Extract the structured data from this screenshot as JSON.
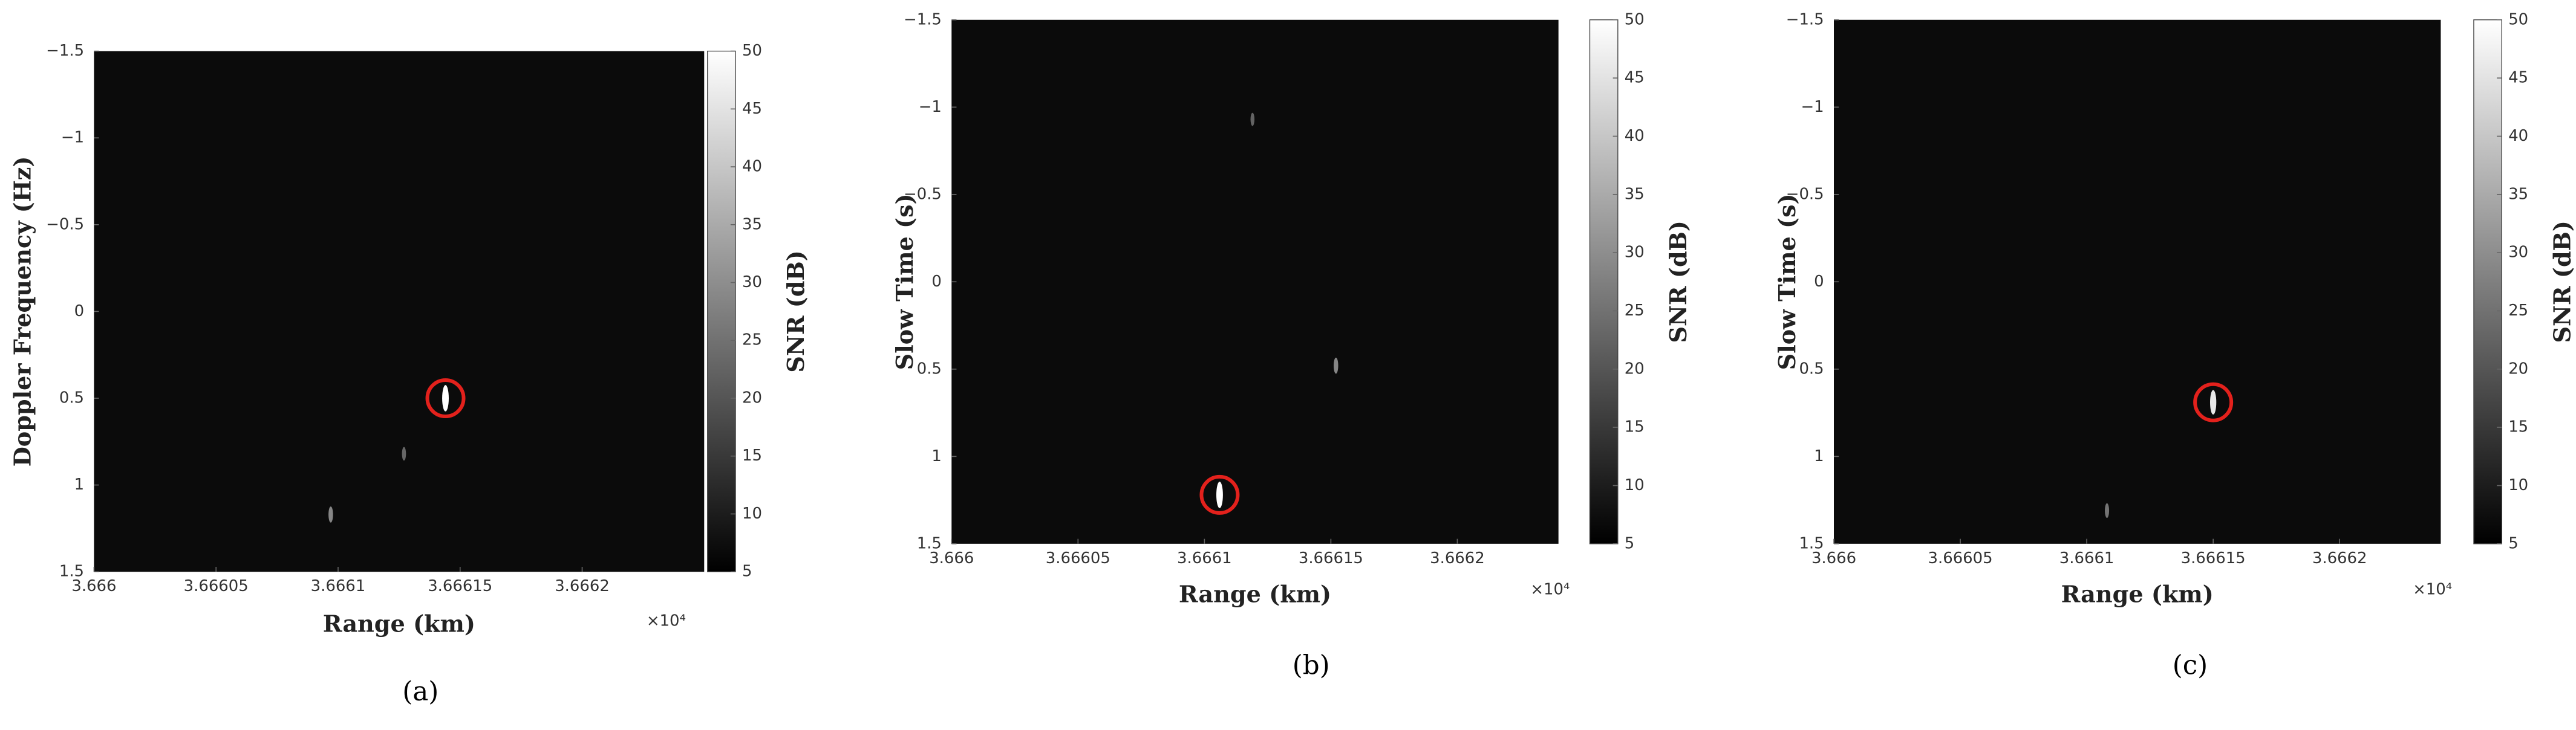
{
  "chart_data": [
    {
      "type": "heatmap",
      "panel_label": "(a)",
      "xlabel": "Range (km)",
      "ylabel": "Doppler Frequency (Hz)",
      "x_multiplier": "×10⁴",
      "xlim": [
        3.666,
        3.66625
      ],
      "xticks": [
        3.666,
        3.66605,
        3.6661,
        3.66615,
        3.6662
      ],
      "ylim": [
        -1.5,
        1.5
      ],
      "y_reversed": true,
      "yticks": [
        {
          "value": -1.5,
          "label": "−1.5"
        },
        {
          "value": -1,
          "label": "−1"
        },
        {
          "value": -0.5,
          "label": "−0.5"
        },
        0,
        0.5,
        1,
        1.5
      ],
      "colorbar_label": "SNR (dB)",
      "clim": [
        5,
        50
      ],
      "cticks": [
        5,
        10,
        15,
        20,
        25,
        30,
        35,
        40,
        45,
        50
      ],
      "x": [
        3.666144,
        3.666097,
        3.666127
      ],
      "y": [
        0.5,
        1.17,
        0.82
      ],
      "values": [
        50,
        22,
        15
      ],
      "highlight": 0,
      "highlight_color": "#e3211c",
      "background": "#0b0b0b"
    },
    {
      "type": "heatmap",
      "panel_label": "(b)",
      "xlabel": "Range (km)",
      "ylabel": "Slow Time (s)",
      "x_multiplier": "×10⁴",
      "xlim": [
        3.666,
        3.66624
      ],
      "xticks": [
        3.666,
        3.66605,
        3.6661,
        3.66615,
        3.6662
      ],
      "ylim": [
        -1.5,
        1.5
      ],
      "y_reversed": true,
      "yticks": [
        {
          "value": -1.5,
          "label": "−1.5"
        },
        {
          "value": -1,
          "label": "−1"
        },
        {
          "value": -0.5,
          "label": "−0.5"
        },
        0,
        0.5,
        1,
        1.5
      ],
      "colorbar_label": "SNR (dB)",
      "clim": [
        5,
        50
      ],
      "cticks": [
        5,
        10,
        15,
        20,
        25,
        30,
        35,
        40,
        45,
        50
      ],
      "x": [
        3.666106,
        3.666152,
        3.666119
      ],
      "y": [
        1.22,
        0.48,
        -0.93
      ],
      "values": [
        50,
        22,
        14
      ],
      "highlight": 0,
      "highlight_color": "#e3211c",
      "background": "#0b0b0b"
    },
    {
      "type": "heatmap",
      "panel_label": "(c)",
      "xlabel": "Range (km)",
      "ylabel": "Slow Time (s)",
      "x_multiplier": "×10⁴",
      "xlim": [
        3.666,
        3.66624
      ],
      "xticks": [
        3.666,
        3.66605,
        3.6661,
        3.66615,
        3.6662
      ],
      "ylim": [
        -1.5,
        1.5
      ],
      "y_reversed": true,
      "yticks": [
        {
          "value": -1.5,
          "label": "−1.5"
        },
        {
          "value": -1,
          "label": "−1"
        },
        {
          "value": -0.5,
          "label": "−0.5"
        },
        0,
        0.5,
        1,
        1.5
      ],
      "colorbar_label": "SNR (dB)",
      "clim": [
        5,
        50
      ],
      "cticks": [
        5,
        10,
        15,
        20,
        25,
        30,
        35,
        40,
        45,
        50
      ],
      "x": [
        3.66615,
        3.666108
      ],
      "y": [
        0.69,
        1.31
      ],
      "values": [
        45,
        18
      ],
      "highlight": 0,
      "highlight_color": "#e3211c",
      "background": "#0b0b0b"
    }
  ]
}
